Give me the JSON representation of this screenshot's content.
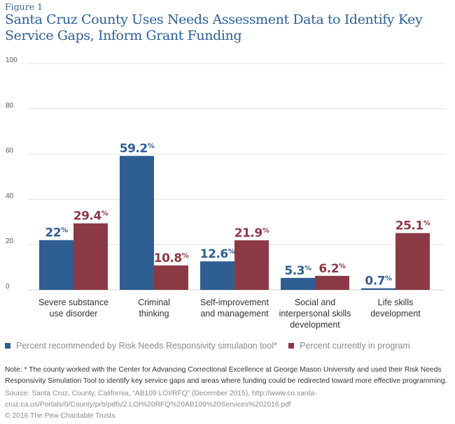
{
  "figure_label": "Figure 1",
  "title": "Santa Cruz County Uses Needs Assessment Data to Identify Key Service Gaps, Inform Grant Funding",
  "colors": {
    "series1": "#2f5e92",
    "series2": "#8b3a45",
    "grid": "#e3e3e3",
    "title": "#2d5f93"
  },
  "chart_data": {
    "type": "bar",
    "title": "Santa Cruz County Uses Needs Assessment Data to Identify Key Service Gaps, Inform Grant Funding",
    "xlabel": "",
    "ylabel": "",
    "ylim": [
      0,
      100
    ],
    "yticks": [
      0,
      20,
      40,
      60,
      80,
      100
    ],
    "grid": true,
    "legend_position": "bottom-left",
    "categories": [
      [
        "Severe substance",
        "use disorder"
      ],
      [
        "Criminal",
        "thinking"
      ],
      [
        "Self-improvement",
        "and management"
      ],
      [
        "Social and",
        "interpersonal skills",
        "development"
      ],
      [
        "Life skills",
        "development"
      ]
    ],
    "series": [
      {
        "name": "Percent recommended by Risk Needs Responsivity simulation tool*",
        "values": [
          22,
          59.2,
          12.6,
          5.3,
          0.7
        ],
        "labels": [
          "22",
          "59.2",
          "12.6",
          "5.3",
          "0.7"
        ]
      },
      {
        "name": "Percent currently in program",
        "values": [
          29.4,
          10.8,
          21.9,
          6.2,
          25.1
        ],
        "labels": [
          "29.4",
          "10.8",
          "21.9",
          "6.2",
          "25.1"
        ]
      }
    ],
    "value_suffix": "%"
  },
  "legend": [
    {
      "label": "Percent recommended by Risk Needs Responsivity simulation tool*"
    },
    {
      "label": "Percent currently in program"
    }
  ],
  "note": "Note: * The county worked with the Center for Advancing Correctional Excellence at George Mason University and used their Risk Needs Responsivity Simulation Tool to identify key service gaps and areas where funding could be redirected toward more effective programming.",
  "source": "Source: Santa Cruz, County, California, “AB109 LOI/RFQ” (December 2015), http://www.co.santa-cruz.ca.us/Portals/0/County/prb/pdfs/2.LOI%20RFQ%20AB109%20Services%202016.pdf",
  "copyright": "© 2016 The Pew Charitable Trusts"
}
